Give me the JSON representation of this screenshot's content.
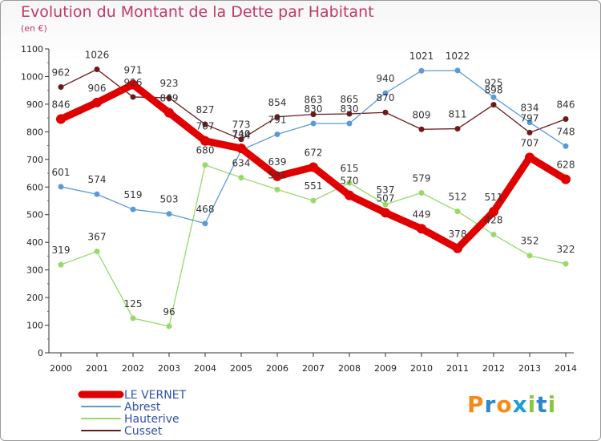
{
  "title": "Evolution du Montant de la Dette par Habitant",
  "subtitle": "(en €)",
  "logo": {
    "letters": [
      "P",
      "r",
      "o",
      "x",
      "i",
      "t",
      "i"
    ],
    "colors": [
      "#f28c1c",
      "#2f86c8",
      "#f28c1c",
      "#1f9fd8",
      "#8cc63f",
      "#2f86c8",
      "#8cc63f"
    ]
  },
  "chart_data": {
    "type": "line",
    "x": [
      "2000",
      "2001",
      "2002",
      "2003",
      "2004",
      "2005",
      "2006",
      "2007",
      "2008",
      "2009",
      "2010",
      "2011",
      "2012",
      "2013",
      "2014"
    ],
    "ylim": [
      0,
      1100
    ],
    "yticks": [
      0,
      100,
      200,
      300,
      400,
      500,
      600,
      700,
      800,
      900,
      1000,
      1100
    ],
    "grid": false,
    "legend_position": "bottom-left",
    "series": [
      {
        "name": "LE VERNET",
        "color": "#e00000",
        "values": [
          846,
          906,
          971,
          869,
          767,
          740,
          639,
          672,
          570,
          507,
          449,
          378,
          511,
          707,
          628
        ]
      },
      {
        "name": "Abrest",
        "color": "#5b9bd5",
        "values": [
          601,
          574,
          519,
          503,
          468,
          734,
          791,
          830,
          830,
          940,
          1021,
          1022,
          925,
          834,
          748
        ]
      },
      {
        "name": "Hauterive",
        "color": "#99d86a",
        "values": [
          319,
          367,
          125,
          96,
          680,
          634,
          591,
          551,
          615,
          537,
          579,
          512,
          428,
          352,
          322
        ]
      },
      {
        "name": "Cusset",
        "color": "#6b1a1a",
        "values": [
          962,
          1026,
          926,
          923,
          827,
          773,
          854,
          863,
          865,
          870,
          809,
          811,
          898,
          797,
          846
        ]
      }
    ],
    "labels": [
      {
        "series": 0,
        "text": [
          "846",
          "906",
          "971",
          "869",
          "767",
          "740",
          "639",
          "672",
          "570",
          "507",
          "449",
          "378",
          "511",
          "707",
          "628"
        ]
      },
      {
        "series": 1,
        "text": [
          "601",
          "574",
          "519",
          "503",
          "468",
          "734",
          "791",
          "830",
          "830",
          "940",
          "1021",
          "1022",
          "925",
          "834",
          "748"
        ]
      },
      {
        "series": 2,
        "text": [
          "319",
          "367",
          "125",
          "96",
          "680",
          "634",
          "591",
          "551",
          "615",
          "537",
          "579",
          "512",
          "428",
          "352",
          "322"
        ]
      },
      {
        "series": 3,
        "text": [
          "962",
          "1026",
          "926",
          "923",
          "827",
          "773",
          "854",
          "863",
          "865",
          "870",
          "809",
          "811",
          "898",
          "797",
          "846"
        ]
      }
    ]
  }
}
